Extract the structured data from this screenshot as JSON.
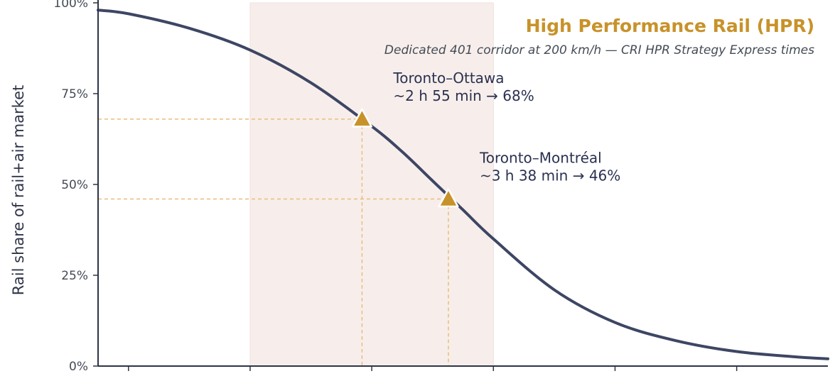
{
  "chart_data": {
    "type": "line",
    "title": "High Performance Rail (HPR)",
    "subtitle": "Dedicated 401 corridor at 200 km/h — CRI HPR Strategy Express times",
    "xlabel": "",
    "ylabel": "Rail share of rail+air market",
    "ylim": [
      0,
      100
    ],
    "yticks": [
      {
        "value": 0,
        "label": "0%"
      },
      {
        "value": 25,
        "label": "25%"
      },
      {
        "value": 50,
        "label": "50%"
      },
      {
        "value": 75,
        "label": "75%"
      },
      {
        "value": 100,
        "label": "100%"
      }
    ],
    "xlim": [
      0.75,
      6.75
    ],
    "xticks": [
      1,
      2,
      3,
      4,
      5,
      6
    ],
    "xtick_labels_visible": false,
    "highlight_band": {
      "x0": 2,
      "x1": 4
    },
    "series": [
      {
        "x": [
          0.75,
          1.0,
          1.5,
          2.0,
          2.5,
          3.0,
          3.25,
          3.5,
          3.75,
          4.0,
          4.5,
          5.0,
          5.5,
          6.0,
          6.5,
          6.75
        ],
        "values": [
          98,
          97,
          93,
          87,
          78,
          66,
          59,
          51,
          43,
          35,
          21,
          12,
          7,
          4,
          2.5,
          2
        ],
        "color": "#3d4663"
      }
    ],
    "markers": [
      {
        "x": 2.92,
        "y": 68,
        "label_line1": "Toronto–Ottawa",
        "label_line2": "~2 h 55 min  →  68%"
      },
      {
        "x": 3.63,
        "y": 46,
        "label_line1": "Toronto–Montréal",
        "label_line2": "~3 h 38 min  →  46%"
      }
    ],
    "grid": false,
    "colors": {
      "line": "#3d4663",
      "accent": "#c8922a",
      "band": "#f7eeeb",
      "guide": "#e8bd7a",
      "axis": "#2e3447"
    }
  }
}
